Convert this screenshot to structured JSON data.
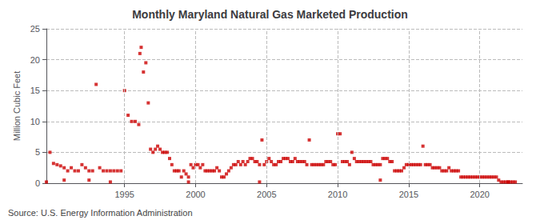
{
  "chart_data": {
    "type": "scatter",
    "title": "Monthly Maryland Natural Gas Marketed Production",
    "ylabel": "Million Cubic Feet",
    "annotations": [
      "Source: U.S. Energy Information Administration"
    ],
    "color": "#cc0000",
    "marker": "square",
    "grid": true,
    "xlim": [
      1989.5,
      2023.0
    ],
    "xticks": [
      1995,
      2000,
      2005,
      2010,
      2015,
      2020
    ],
    "ylim": [
      0,
      25
    ],
    "yticks": [
      0,
      5,
      10,
      15,
      20,
      25
    ],
    "x": [
      1989.75,
      1990.0,
      1990.25,
      1990.5,
      1990.75,
      1991.0,
      1991.25,
      1991.5,
      1991.75,
      1992.0,
      1992.25,
      1992.5,
      1992.75,
      1993.0,
      1993.25,
      1993.5,
      1993.75,
      1994.0,
      1994.25,
      1994.5,
      1994.75,
      1989.5,
      1990.75,
      1992.5,
      1994.0,
      1995.0,
      1995.25,
      1995.5,
      1995.75,
      1996.0,
      1996.08,
      1996.17,
      1996.33,
      1996.5,
      1996.67,
      1996.83,
      1997.0,
      1997.17,
      1997.33,
      1997.5,
      1997.67,
      1997.83,
      1998.0,
      1998.17,
      1998.33,
      1998.5,
      1998.67,
      1998.83,
      1999.0,
      1999.17,
      1999.33,
      1999.5,
      1999.67,
      1999.83,
      1999.5,
      2000.0,
      2000.17,
      2000.33,
      2000.5,
      2000.67,
      2000.83,
      2001.0,
      2001.17,
      2001.33,
      2001.5,
      2001.67,
      2001.83,
      2002.0,
      2002.17,
      2002.33,
      2002.5,
      2002.67,
      2002.83,
      2003.0,
      2003.17,
      2003.33,
      2003.5,
      2003.67,
      2003.83,
      2004.0,
      2004.17,
      2004.33,
      2004.5,
      2004.67,
      2004.83,
      2004.5,
      2005.0,
      2005.17,
      2005.33,
      2005.5,
      2005.67,
      2005.83,
      2006.0,
      2006.17,
      2006.33,
      2006.5,
      2006.67,
      2006.83,
      2007.0,
      2007.17,
      2007.33,
      2007.5,
      2007.67,
      2007.83,
      2008.0,
      2008.17,
      2008.33,
      2008.5,
      2008.67,
      2008.83,
      2009.0,
      2009.17,
      2009.33,
      2009.5,
      2009.67,
      2009.83,
      2010.0,
      2010.17,
      2010.33,
      2010.5,
      2010.67,
      2010.83,
      2011.0,
      2011.17,
      2011.33,
      2011.5,
      2011.67,
      2011.83,
      2012.0,
      2012.17,
      2012.33,
      2012.5,
      2012.67,
      2012.83,
      2013.0,
      2013.17,
      2013.33,
      2013.5,
      2013.67,
      2013.83,
      2013.0,
      2014.0,
      2014.17,
      2014.33,
      2014.5,
      2014.67,
      2014.83,
      2015.0,
      2015.17,
      2015.33,
      2015.5,
      2015.67,
      2015.83,
      2016.0,
      2016.17,
      2016.33,
      2016.5,
      2016.67,
      2016.83,
      2017.0,
      2017.17,
      2017.33,
      2017.5,
      2017.67,
      2017.83,
      2018.0,
      2018.17,
      2018.33,
      2018.5,
      2018.67,
      2018.83,
      2019.0,
      2019.17,
      2019.33,
      2019.5,
      2019.67,
      2019.83,
      2020.0,
      2020.17,
      2020.33,
      2020.5,
      2020.67,
      2020.83,
      2021.0,
      2021.17,
      2021.33,
      2021.5,
      2021.67,
      2021.83,
      2022.0,
      2022.17,
      2022.33,
      2022.0,
      2022.5
    ],
    "values": [
      5.0,
      3.2,
      3.0,
      2.8,
      2.5,
      2.0,
      2.5,
      2.0,
      2.0,
      3.0,
      2.5,
      2.0,
      2.0,
      16.0,
      2.5,
      2.0,
      2.0,
      2.0,
      2.0,
      2.0,
      2.0,
      0.2,
      0.5,
      0.5,
      0.2,
      15.0,
      11.0,
      10.0,
      10.0,
      9.5,
      21.0,
      22.0,
      18.0,
      19.5,
      13.0,
      5.5,
      5.0,
      5.5,
      6.0,
      5.5,
      5.0,
      5.0,
      5.0,
      4.0,
      3.0,
      2.0,
      2.0,
      2.0,
      1.0,
      2.0,
      1.5,
      1.0,
      3.0,
      2.5,
      0.2,
      3.0,
      3.0,
      2.5,
      3.0,
      2.0,
      2.0,
      2.0,
      2.0,
      2.0,
      2.5,
      2.0,
      1.0,
      1.0,
      1.5,
      2.0,
      2.5,
      3.0,
      3.0,
      3.5,
      3.0,
      3.5,
      3.0,
      3.5,
      4.0,
      4.0,
      3.5,
      3.5,
      3.0,
      7.0,
      3.0,
      0.2,
      3.5,
      4.0,
      3.5,
      3.0,
      3.0,
      3.5,
      3.5,
      4.0,
      4.0,
      4.0,
      3.5,
      3.5,
      4.0,
      3.5,
      3.5,
      3.5,
      3.5,
      3.0,
      7.0,
      3.0,
      3.0,
      3.0,
      3.0,
      3.0,
      3.0,
      3.5,
      3.5,
      3.5,
      3.0,
      3.0,
      8.0,
      8.0,
      3.5,
      3.5,
      3.5,
      3.0,
      5.0,
      4.0,
      3.5,
      3.5,
      3.5,
      3.5,
      3.5,
      3.5,
      3.5,
      3.0,
      3.0,
      3.0,
      3.0,
      4.0,
      4.0,
      4.0,
      3.5,
      3.5,
      0.5,
      2.0,
      2.0,
      2.0,
      2.0,
      2.5,
      3.0,
      3.0,
      3.0,
      3.0,
      3.0,
      3.0,
      3.0,
      6.0,
      3.0,
      3.0,
      3.0,
      2.5,
      2.5,
      2.5,
      2.5,
      2.0,
      2.0,
      2.0,
      2.5,
      2.0,
      2.0,
      2.0,
      2.0,
      1.0,
      1.0,
      1.0,
      1.0,
      1.0,
      1.0,
      1.0,
      1.0,
      1.0,
      1.0,
      1.0,
      1.0,
      1.0,
      1.0,
      1.0,
      1.0,
      0.5,
      0.2,
      0.2,
      0.2,
      0.2,
      0.2,
      0.2,
      0.2,
      0.2
    ]
  }
}
